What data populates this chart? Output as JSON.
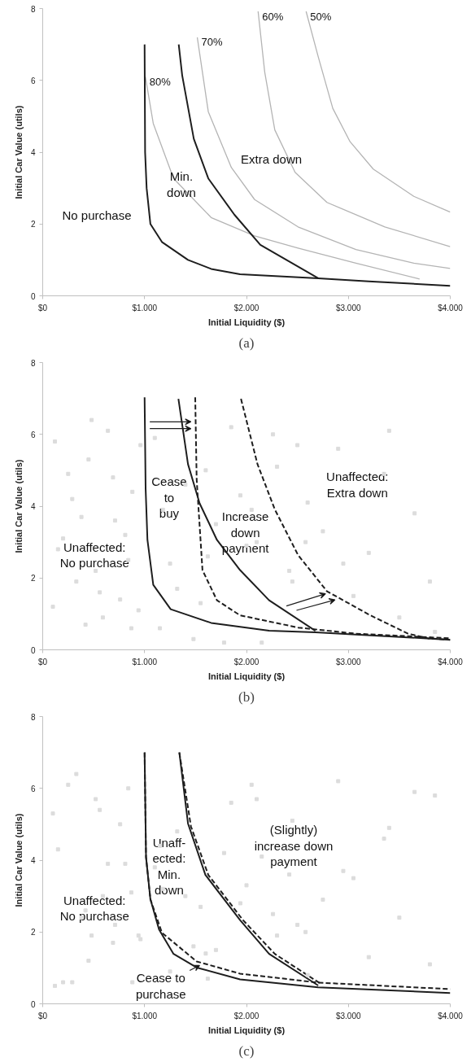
{
  "chart_data": [
    {
      "type": "line",
      "xlabel": "Initial Liquidity ($)",
      "ylabel": "Initial Car Value (utils)",
      "xlim": [
        0,
        4000
      ],
      "ylim": [
        0,
        8
      ],
      "xticks": [
        {
          "value": 0,
          "label": "$0"
        },
        {
          "value": 1000,
          "label": "$1.000"
        },
        {
          "value": 2000,
          "label": "$2.000"
        },
        {
          "value": 3000,
          "label": "$3.000"
        },
        {
          "value": 4000,
          "label": "$4.000"
        }
      ],
      "yticks": [
        0,
        2,
        4,
        6,
        8
      ],
      "line_style": "solid",
      "marker": "none",
      "series": [
        {
          "name": "80%",
          "color": "#b4b4b4",
          "x": [
            1008,
            1085,
            1284,
            1653,
            2080,
            2506,
            3074,
            3699
          ],
          "values": [
            6.1,
            4.8,
            3.27,
            2.18,
            1.67,
            1.33,
            0.91,
            0.47
          ]
        },
        {
          "name": "70%",
          "color": "#b4b4b4",
          "x": [
            1517,
            1625,
            1852,
            2080,
            2506,
            3074,
            3642,
            4000
          ],
          "values": [
            7.2,
            5.13,
            3.57,
            2.68,
            1.92,
            1.29,
            0.91,
            0.76
          ]
        },
        {
          "name": "60%",
          "color": "#b4b4b4",
          "x": [
            2114,
            2179,
            2278,
            2477,
            2790,
            3358,
            4000
          ],
          "values": [
            7.92,
            6.23,
            4.62,
            3.44,
            2.6,
            1.92,
            1.37
          ]
        },
        {
          "name": "50%",
          "color": "#b4b4b4",
          "x": [
            2585,
            2705,
            2847,
            3017,
            3244,
            3642,
            4000
          ],
          "values": [
            7.92,
            6.65,
            5.22,
            4.29,
            3.53,
            2.77,
            2.33
          ]
        },
        {
          "color": "#1e1e1e",
          "x": [
            1000,
            1005,
            1020,
            1057,
            1170,
            1426,
            1653,
            1937,
            2704,
            3200,
            4000
          ],
          "values": [
            7,
            4,
            3,
            2,
            1.5,
            1,
            0.75,
            0.6,
            0.49,
            0.4,
            0.28
          ]
        },
        {
          "color": "#1e1e1e",
          "x": [
            1335,
            1369,
            1483,
            1625,
            1881,
            2136,
            2704
          ],
          "values": [
            7,
            6.14,
            4.37,
            3.27,
            2.26,
            1.42,
            0.49
          ]
        }
      ],
      "annotations": [
        "No purchase",
        "Min.\ndown",
        "Extra down",
        "(a)"
      ]
    },
    {
      "type": "line",
      "xlabel": "Initial Liquidity ($)",
      "ylabel": "Initial Car Value (utils)",
      "xlim": [
        0,
        4000
      ],
      "ylim": [
        0,
        8
      ],
      "xticks": [
        {
          "value": 0,
          "label": "$0"
        },
        {
          "value": 1000,
          "label": "$1.000"
        },
        {
          "value": 2000,
          "label": "$2.000"
        },
        {
          "value": 3000,
          "label": "$3.000"
        },
        {
          "value": 4000,
          "label": "$4.000"
        }
      ],
      "yticks": [
        0,
        2,
        4,
        6,
        8
      ],
      "line_style": "solid",
      "marker": "none",
      "series": [
        {
          "type": "scatter",
          "marker": "square",
          "color": "#dcdcdc",
          "x": [
            120,
            250,
            380,
            520,
            640,
            760,
            880,
            200,
            330,
            450,
            590,
            710,
            840,
            960,
            150,
            290,
            420,
            560,
            690,
            810,
            940,
            1100,
            1250,
            1400,
            1550,
            1700,
            1850,
            2000,
            2150,
            2300,
            2450,
            2600,
            2750,
            2900,
            3050,
            3200,
            3350,
            3500,
            3650,
            3800,
            1180,
            1320,
            1480,
            1620,
            1780,
            1940,
            2100,
            2260,
            2420,
            2580,
            100,
            480,
            870,
            1150,
            1600,
            2050,
            2500,
            2950,
            3400,
            3850
          ],
          "values": [
            5.8,
            4.9,
            3.7,
            2.2,
            6.1,
            1.4,
            4.4,
            3.1,
            1.9,
            5.3,
            0.9,
            3.6,
            2.5,
            5.7,
            2.8,
            4.2,
            0.7,
            1.6,
            4.8,
            3.2,
            1.1,
            5.9,
            2.4,
            4.6,
            1.3,
            3.5,
            6.2,
            2.9,
            0.2,
            5.1,
            1.9,
            4.1,
            3.3,
            5.6,
            1.5,
            2.7,
            4.9,
            0.9,
            3.8,
            1.9,
            3.9,
            1.7,
            0.3,
            2.6,
            0.2,
            4.3,
            3.0,
            6.0,
            2.2,
            3.0,
            1.2,
            6.4,
            0.6,
            0.6,
            5.0,
            3.9,
            5.7,
            2.4,
            6.1,
            0.5
          ]
        },
        {
          "color": "#1e1e1e",
          "x": [
            1000,
            1010,
            1028,
            1085,
            1256,
            1653,
            2222,
            2676,
            4000
          ],
          "values": [
            7.03,
            4.5,
            3.06,
            1.81,
            1.13,
            0.75,
            0.53,
            0.49,
            0.28
          ]
        },
        {
          "color": "#1e1e1e",
          "x": [
            1332,
            1426,
            1540,
            1710,
            1937,
            2222,
            2676
          ],
          "values": [
            6.99,
            5.17,
            4.08,
            3.06,
            2.22,
            1.38,
            0.53
          ]
        },
        {
          "color": "#1e1e1e",
          "line_style": "dashed",
          "x": [
            1497,
            1511,
            1568,
            1710,
            1937,
            2506,
            3074,
            4000
          ],
          "values": [
            7.03,
            4.75,
            2.22,
            1.38,
            0.96,
            0.62,
            0.45,
            0.32
          ]
        },
        {
          "color": "#1e1e1e",
          "line_style": "dashed",
          "x": [
            1946,
            2108,
            2278,
            2506,
            2790,
            3216,
            3585,
            3784,
            4000
          ],
          "values": [
            6.99,
            5.17,
            3.91,
            2.64,
            1.63,
            0.96,
            0.45,
            0.32,
            0.28
          ]
        }
      ],
      "annotations": [
        "Unaffected:\nNo purchase",
        "Cease\nto\nbuy",
        "Increase\ndown\npayment",
        "Unaffected:\nExtra down",
        "(b)"
      ]
    },
    {
      "type": "line",
      "xlabel": "Initial Liquidity ($)",
      "ylabel": "Initial Car Value (utils)",
      "xlim": [
        0,
        4000
      ],
      "ylim": [
        0,
        8
      ],
      "xticks": [
        {
          "value": 0,
          "label": "$0"
        },
        {
          "value": 1000,
          "label": "$1.000"
        },
        {
          "value": 2000,
          "label": "$2.000"
        },
        {
          "value": 3000,
          "label": "$3.000"
        },
        {
          "value": 4000,
          "label": "$4.000"
        }
      ],
      "yticks": [
        0,
        2,
        4,
        6,
        8
      ],
      "line_style": "solid",
      "marker": "none",
      "series": [
        {
          "type": "scatter",
          "marker": "square",
          "color": "#dcdcdc",
          "x": [
            120,
            250,
            380,
            520,
            640,
            760,
            880,
            200,
            330,
            450,
            590,
            710,
            840,
            960,
            150,
            290,
            420,
            560,
            690,
            810,
            940,
            1100,
            1250,
            1400,
            1550,
            1700,
            1850,
            2000,
            2150,
            2300,
            2450,
            2600,
            2750,
            2900,
            3050,
            3200,
            3350,
            3500,
            3650,
            3800,
            1180,
            1320,
            1480,
            1620,
            1780,
            1940,
            2100,
            2260,
            2420,
            2580,
            100,
            480,
            870,
            1150,
            1600,
            2050,
            2500,
            2950,
            3400,
            3850
          ],
          "values": [
            0.5,
            6.1,
            2.4,
            5.7,
            3.9,
            5.0,
            0.6,
            0.6,
            6.4,
            1.2,
            3.0,
            2.2,
            6.0,
            1.8,
            4.3,
            0.6,
            2.6,
            5.4,
            1.7,
            3.9,
            1.9,
            3.8,
            0.9,
            3.0,
            2.7,
            1.5,
            5.6,
            3.3,
            4.1,
            1.9,
            5.1,
            0.8,
            2.9,
            6.2,
            3.5,
            1.3,
            4.6,
            2.4,
            5.9,
            1.1,
            3.2,
            4.8,
            1.6,
            0.7,
            4.2,
            2.8,
            5.7,
            2.5,
            3.6,
            2.0,
            5.3,
            1.9,
            3.1,
            4.4,
            1.4,
            6.1,
            2.2,
            3.7,
            4.9,
            5.8
          ]
        },
        {
          "color": "#1e1e1e",
          "x": [
            1000,
            1014,
            1057,
            1142,
            1284,
            1511,
            1937,
            2704,
            4000
          ],
          "values": [
            7,
            4.09,
            2.91,
            2.07,
            1.39,
            1.01,
            0.68,
            0.46,
            0.3
          ]
        },
        {
          "color": "#1e1e1e",
          "line_style": "dashed",
          "x": [
            1000,
            1014,
            1057,
            1170,
            1511,
            1937,
            2704,
            4000
          ],
          "values": [
            7,
            4.09,
            2.91,
            1.98,
            1.18,
            0.84,
            0.59,
            0.41
          ]
        },
        {
          "color": "#1e1e1e",
          "x": [
            1341,
            1426,
            1597,
            1937,
            2222,
            2704
          ],
          "values": [
            7,
            5.02,
            3.59,
            2.33,
            1.39,
            0.51
          ]
        },
        {
          "color": "#1e1e1e",
          "line_style": "dashed",
          "x": [
            1341,
            1455,
            1625,
            1966,
            2278,
            2733
          ],
          "values": [
            7,
            4.94,
            3.59,
            2.33,
            1.39,
            0.55
          ]
        }
      ],
      "annotations": [
        "Unaffected:\nNo purchase",
        "Unaff-\nected:\nMin.\ndown",
        "(Slightly)\nincrease down\npayment",
        "Cease to\npurchase",
        "(c)"
      ]
    }
  ]
}
